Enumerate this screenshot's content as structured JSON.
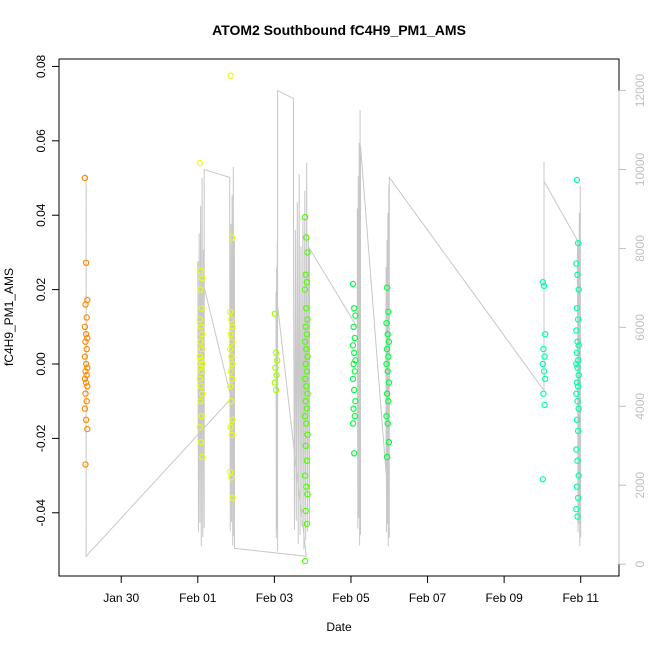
{
  "chart_data": {
    "type": "scatter",
    "title": "ATOM2 Southbound fC4H9_PM1_AMS",
    "xlabel": "Date",
    "ylabel": "fC4H9_PM1_AMS",
    "x_range": [
      "2017-01-28T09:00",
      "2017-02-12T00:00"
    ],
    "y_range": [
      -0.057,
      0.082
    ],
    "y2_range": [
      -300,
      12800
    ],
    "x_ticks": [
      {
        "date": "2017-01-30",
        "label": "Jan 30"
      },
      {
        "date": "2017-02-01",
        "label": "Feb 01"
      },
      {
        "date": "2017-02-03",
        "label": "Feb 03"
      },
      {
        "date": "2017-02-05",
        "label": "Feb 05"
      },
      {
        "date": "2017-02-07",
        "label": "Feb 07"
      },
      {
        "date": "2017-02-09",
        "label": "Feb 09"
      },
      {
        "date": "2017-02-11",
        "label": "Feb 11"
      }
    ],
    "y_ticks": [
      {
        "value": -0.04,
        "label": "-0.04"
      },
      {
        "value": -0.02,
        "label": "-0.02"
      },
      {
        "value": 0.0,
        "label": "0.00"
      },
      {
        "value": 0.02,
        "label": "0.02"
      },
      {
        "value": 0.04,
        "label": "0.04"
      },
      {
        "value": 0.06,
        "label": "0.06"
      },
      {
        "value": 0.08,
        "label": "0.08"
      }
    ],
    "y2_ticks": [
      {
        "value": 0,
        "label": "0"
      },
      {
        "value": 2000,
        "label": "2000"
      },
      {
        "value": 4000,
        "label": "4000"
      },
      {
        "value": 6000,
        "label": "6000"
      },
      {
        "value": 8000,
        "label": "8000"
      },
      {
        "value": 10000,
        "label": "10000"
      },
      {
        "value": 12000,
        "label": "12000"
      }
    ],
    "series": [
      {
        "color": "#ff8c00",
        "clusters": [
          {
            "date": "2017-01-29T02:00",
            "values": [
              0.05,
              0.0272,
              0.0172,
              0.016,
              0.0125,
              0.01,
              0.008,
              0.007,
              0.006,
              0.004,
              0.002,
              0.0,
              -0.001,
              -0.002,
              -0.003,
              -0.004,
              -0.005,
              -0.006,
              -0.008,
              -0.01,
              -0.012,
              -0.015,
              -0.0175,
              -0.027
            ]
          }
        ]
      },
      {
        "color": "#e8ff00",
        "clusters": [
          {
            "date": "2017-02-01T02:00",
            "values": [
              0.054,
              0.025,
              0.023,
              0.02,
              0.015,
              0.012,
              0.01,
              0.008,
              0.006,
              0.004,
              0.002,
              0.001,
              0.0,
              -0.001,
              -0.002,
              -0.004,
              -0.006,
              -0.008,
              -0.01,
              -0.014,
              -0.017,
              -0.021,
              -0.025
            ]
          },
          {
            "date": "2017-02-01T21:00",
            "values": [
              0.0775,
              0.034,
              0.014,
              0.012,
              0.01,
              0.008,
              0.006,
              0.004,
              0.002,
              0.0,
              -0.002,
              -0.004,
              -0.006,
              -0.01,
              -0.015,
              -0.017,
              -0.019,
              -0.029,
              -0.0305,
              -0.036
            ]
          }
        ]
      },
      {
        "color": "#a0ff00",
        "clusters": [
          {
            "date": "2017-02-03T01:00",
            "values": [
              0.0135,
              0.003,
              0.001,
              -0.001,
              -0.003,
              -0.005,
              -0.007
            ]
          }
        ]
      },
      {
        "color": "#50ff00",
        "clusters": [
          {
            "date": "2017-02-03T20:00",
            "values": [
              0.0395,
              0.034,
              0.03,
              0.024,
              0.022,
              0.02,
              0.015,
              0.012,
              0.01,
              0.008,
              0.006,
              0.004,
              0.002,
              0.0,
              -0.002,
              -0.004,
              -0.006,
              -0.008,
              -0.01,
              -0.012,
              -0.014,
              -0.016,
              -0.019,
              -0.022,
              -0.026,
              -0.03,
              -0.033,
              -0.035,
              -0.0395,
              -0.043,
              -0.053
            ]
          }
        ]
      },
      {
        "color": "#00ff40",
        "clusters": [
          {
            "date": "2017-02-05T02:00",
            "values": [
              0.0215,
              0.015,
              0.013,
              0.01,
              0.007,
              0.005,
              0.003,
              0.001,
              0.0,
              -0.002,
              -0.004,
              -0.007,
              -0.01,
              -0.012,
              -0.014,
              -0.016,
              -0.024
            ]
          },
          {
            "date": "2017-02-05T23:00",
            "values": [
              0.0205,
              0.014,
              0.011,
              0.008,
              0.006,
              0.004,
              0.002,
              0.0,
              -0.002,
              -0.005,
              -0.008,
              -0.01,
              -0.014,
              -0.016,
              -0.021,
              -0.025
            ]
          }
        ]
      },
      {
        "color": "#00ffb0",
        "clusters": [
          {
            "date": "2017-02-10T01:00",
            "values": [
              0.022,
              0.021,
              0.008,
              0.004,
              0.002,
              0.0,
              -0.002,
              -0.004,
              -0.008,
              -0.011,
              -0.031
            ]
          },
          {
            "date": "2017-02-10T22:00",
            "values": [
              0.0495,
              0.0325,
              0.027,
              0.024,
              0.02,
              0.015,
              0.012,
              0.009,
              0.006,
              0.005,
              0.003,
              0.001,
              0.0,
              -0.001,
              -0.003,
              -0.005,
              -0.006,
              -0.008,
              -0.01,
              -0.012,
              -0.015,
              -0.018,
              -0.023,
              -0.026,
              -0.03,
              -0.033,
              -0.036,
              -0.039,
              -0.041
            ]
          }
        ]
      }
    ],
    "secondary_line": {
      "color": "#c8c8c8",
      "axis": "right",
      "segments": [
        {
          "start": "2017-01-29T02:00",
          "end": "2017-01-29T02:00",
          "min": 0,
          "max": 11100,
          "oscillate": true
        },
        {
          "start": "2017-01-29T02:00",
          "end": "2017-02-01T21:00",
          "from": 200,
          "to": 4200,
          "oscillate": false
        },
        {
          "start": "2017-02-01T00:00",
          "end": "2017-02-01T04:00",
          "min": 100,
          "max": 10200,
          "oscillate": true
        },
        {
          "start": "2017-02-01T04:00",
          "end": "2017-02-01T20:00",
          "from": 10000,
          "to": 9800,
          "oscillate": false
        },
        {
          "start": "2017-02-01T20:00",
          "end": "2017-02-01T23:00",
          "min": 100,
          "max": 10500,
          "oscillate": true
        },
        {
          "start": "2017-02-01T23:00",
          "end": "2017-02-03T20:00",
          "from": 400,
          "to": 200,
          "oscillate": false
        },
        {
          "start": "2017-02-03T01:00",
          "end": "2017-02-03T02:00",
          "min": 0,
          "max": 9200,
          "oscillate": true
        },
        {
          "start": "2017-02-03T02:00",
          "end": "2017-02-03T12:00",
          "from": 12000,
          "to": 11800,
          "oscillate": false
        },
        {
          "start": "2017-02-03T12:00",
          "end": "2017-02-03T22:00",
          "min": 150,
          "max": 10300,
          "oscillate": true
        },
        {
          "start": "2017-02-03T22:00",
          "end": "2017-02-05T04:00",
          "from": 8000,
          "to": 6000,
          "oscillate": false
        },
        {
          "start": "2017-02-05T04:00",
          "end": "2017-02-05T06:00",
          "min": 50,
          "max": 12000,
          "oscillate": true
        },
        {
          "start": "2017-02-05T06:00",
          "end": "2017-02-05T22:00",
          "from": 10600,
          "to": 2300,
          "oscillate": false
        },
        {
          "start": "2017-02-05T22:00",
          "end": "2017-02-06T00:00",
          "min": 100,
          "max": 10000,
          "oscillate": true
        },
        {
          "start": "2017-02-06T00:00",
          "end": "2017-02-10T01:00",
          "from": 9800,
          "to": 4400,
          "oscillate": false
        },
        {
          "start": "2017-02-10T01:00",
          "end": "2017-02-10T01:00",
          "from": 10200,
          "to": 9700,
          "oscillate": false
        },
        {
          "start": "2017-02-10T01:00",
          "end": "2017-02-10T22:00",
          "from": 9700,
          "to": 8200,
          "oscillate": false
        },
        {
          "start": "2017-02-10T22:00",
          "end": "2017-02-11T00:00",
          "min": 100,
          "max": 10000,
          "oscillate": true
        }
      ]
    },
    "grid": false,
    "legend": "none"
  }
}
